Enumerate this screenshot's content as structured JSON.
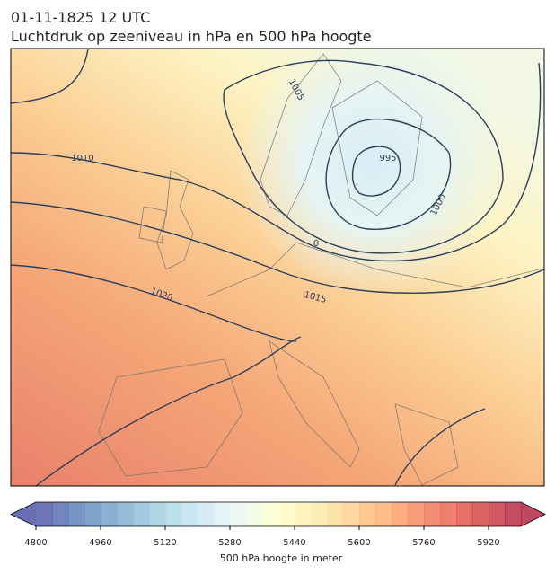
{
  "header": {
    "line1": "01-11-1825 12 UTC",
    "line2": "Luchtdruk op zeeniveau in hPa en 500 hPa hoogte"
  },
  "contour_labels": [
    "1005",
    "995",
    "1000",
    "1010",
    "1015",
    "1020",
    "0"
  ],
  "colorbar": {
    "lim": [
      4800,
      6000
    ],
    "ticks": [
      4800,
      4960,
      5120,
      5280,
      5440,
      5600,
      5760,
      5920
    ],
    "label": "500 hPa hoogte in meter"
  }
}
